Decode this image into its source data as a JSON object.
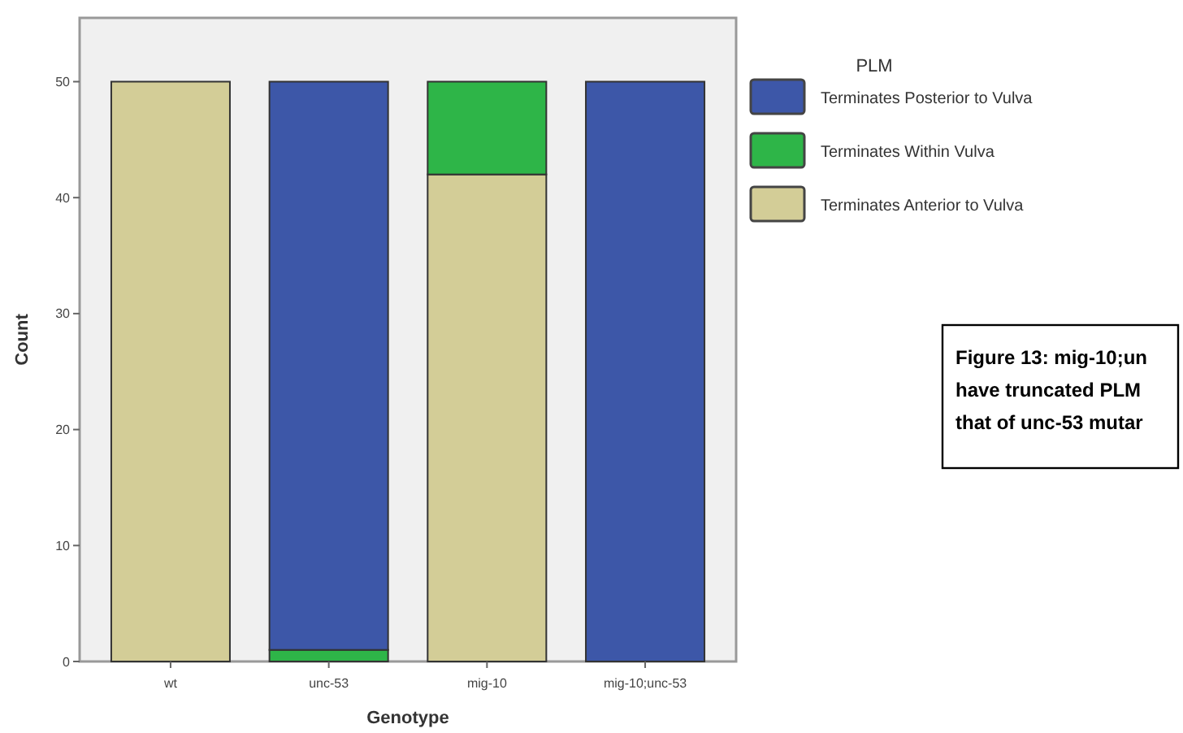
{
  "chart_data": {
    "type": "bar",
    "stacked": true,
    "xlabel": "Genotype",
    "ylabel": "Count",
    "legend_title": "PLM",
    "legend": "right",
    "categories": [
      "wt",
      "unc-53",
      "mig-10",
      "mig-10;unc-53"
    ],
    "ylim": [
      0,
      55.5
    ],
    "yticks": [
      0,
      10,
      20,
      30,
      40,
      50
    ],
    "grid": false,
    "series": [
      {
        "name": "Terminates Anterior to Vulva",
        "color": "#d3cd97",
        "values": [
          50,
          0,
          42,
          0
        ]
      },
      {
        "name": "Terminates Within Vulva",
        "color": "#2eb548",
        "values": [
          0,
          1,
          8,
          0
        ]
      },
      {
        "name": "Terminates Posterior to Vulva",
        "color": "#3d57a8",
        "values": [
          0,
          49,
          0,
          50
        ]
      }
    ],
    "annotations": [
      "Figure 13: mig-10;un",
      "have truncated PLM",
      "that of unc-53 mutar"
    ]
  }
}
